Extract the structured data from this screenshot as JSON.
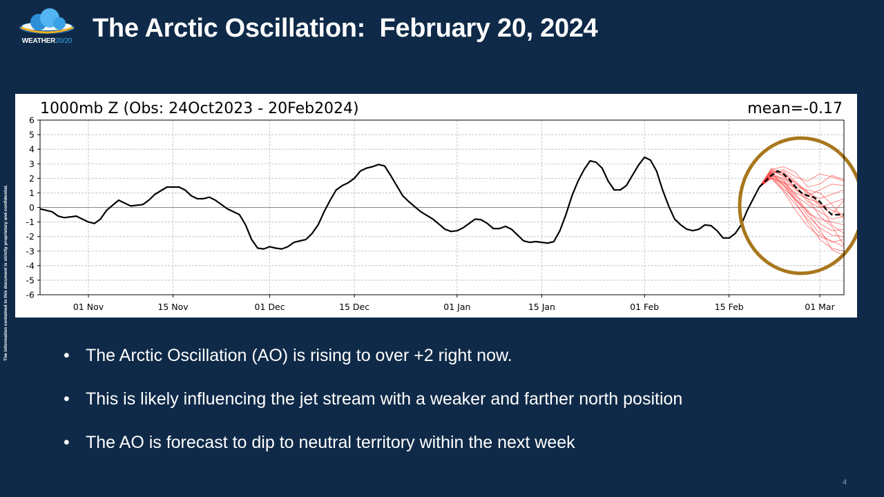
{
  "logo": {
    "name_main": "WEATHER",
    "name_accent": "20/20",
    "icon": "cloud-logo-icon"
  },
  "title": "The Arctic Oscillation:  February 20, 2024",
  "side_note": "The information contained in this document is strictly proprietary and confidential.",
  "bullets": [
    "The Arctic Oscillation (AO) is rising to over +2 right now.",
    "This is likely influencing the jet stream with a weaker and farther north position",
    "The AO is forecast to dip to neutral territory within the next week"
  ],
  "page_number": "4",
  "colors": {
    "background": "#0f2a48",
    "observed": "#000000",
    "ensemble": "#ff3030",
    "highlight_ring": "#a8771d"
  },
  "chart_data": {
    "type": "line",
    "title": "1000mb Z (Obs: 24Oct2023 - 20Feb2024)",
    "annotation": "mean=-0.17",
    "x_type": "date",
    "xlim": [
      "2023-10-24",
      "2024-03-05"
    ],
    "ylim": [
      -6,
      6
    ],
    "yticks": [
      -6,
      -5,
      -4,
      -3,
      -2,
      -1,
      0,
      1,
      2,
      3,
      4,
      5,
      6
    ],
    "xticks": [
      {
        "date": "2023-11-01",
        "label": "01 Nov"
      },
      {
        "date": "2023-11-15",
        "label": "15 Nov"
      },
      {
        "date": "2023-12-01",
        "label": "01 Dec"
      },
      {
        "date": "2023-12-15",
        "label": "15 Dec"
      },
      {
        "date": "2024-01-01",
        "label": "01 Jan"
      },
      {
        "date": "2024-01-15",
        "label": "15 Jan"
      },
      {
        "date": "2024-02-01",
        "label": "01 Feb"
      },
      {
        "date": "2024-02-15",
        "label": "15 Feb"
      },
      {
        "date": "2024-03-01",
        "label": "01 Mar"
      }
    ],
    "grid": true,
    "reference_line": 0,
    "observed": {
      "x": [
        "2023-10-24",
        "2023-10-26",
        "2023-10-27",
        "2023-10-28",
        "2023-10-30",
        "2023-11-01",
        "2023-11-02",
        "2023-11-03",
        "2023-11-04",
        "2023-11-06",
        "2023-11-07",
        "2023-11-08",
        "2023-11-10",
        "2023-11-11",
        "2023-11-12",
        "2023-11-14",
        "2023-11-16",
        "2023-11-17",
        "2023-11-18",
        "2023-11-19",
        "2023-11-20",
        "2023-11-21",
        "2023-11-22",
        "2023-11-24",
        "2023-11-25",
        "2023-11-26",
        "2023-11-27",
        "2023-11-28",
        "2023-11-29",
        "2023-11-30",
        "2023-12-01",
        "2023-12-02",
        "2023-12-03",
        "2023-12-04",
        "2023-12-05",
        "2023-12-06",
        "2023-12-07",
        "2023-12-08",
        "2023-12-09",
        "2023-12-10",
        "2023-12-11",
        "2023-12-12",
        "2023-12-13",
        "2023-12-14",
        "2023-12-15",
        "2023-12-16",
        "2023-12-17",
        "2023-12-18",
        "2023-12-19",
        "2023-12-20",
        "2023-12-21",
        "2023-12-22",
        "2023-12-23",
        "2023-12-24",
        "2023-12-26",
        "2023-12-28",
        "2023-12-30",
        "2023-12-31",
        "2024-01-01",
        "2024-01-02",
        "2024-01-03",
        "2024-01-04",
        "2024-01-05",
        "2024-01-06",
        "2024-01-07",
        "2024-01-08",
        "2024-01-09",
        "2024-01-10",
        "2024-01-11",
        "2024-01-12",
        "2024-01-13",
        "2024-01-14",
        "2024-01-15",
        "2024-01-16",
        "2024-01-17",
        "2024-01-18",
        "2024-01-19",
        "2024-01-20",
        "2024-01-21",
        "2024-01-22",
        "2024-01-23",
        "2024-01-24",
        "2024-01-25",
        "2024-01-26",
        "2024-01-27",
        "2024-01-28",
        "2024-01-29",
        "2024-01-30",
        "2024-01-31",
        "2024-02-01",
        "2024-02-02",
        "2024-02-03",
        "2024-02-04",
        "2024-02-05",
        "2024-02-06",
        "2024-02-07",
        "2024-02-08",
        "2024-02-09",
        "2024-02-10",
        "2024-02-11",
        "2024-02-12",
        "2024-02-13",
        "2024-02-14",
        "2024-02-15",
        "2024-02-16",
        "2024-02-17",
        "2024-02-18",
        "2024-02-19",
        "2024-02-20"
      ],
      "y": [
        -0.1,
        -0.3,
        -0.6,
        -0.7,
        -0.6,
        -1.0,
        -1.1,
        -0.8,
        -0.2,
        0.5,
        0.3,
        0.1,
        0.2,
        0.5,
        0.9,
        1.4,
        1.4,
        1.2,
        0.8,
        0.6,
        0.6,
        0.7,
        0.5,
        -0.1,
        -0.3,
        -0.5,
        -1.2,
        -2.2,
        -2.8,
        -2.85,
        -2.7,
        -2.8,
        -2.85,
        -2.7,
        -2.4,
        -2.3,
        -2.2,
        -1.8,
        -1.2,
        -0.3,
        0.5,
        1.2,
        1.5,
        1.7,
        2.0,
        2.5,
        2.7,
        2.8,
        2.95,
        2.85,
        2.2,
        1.5,
        0.8,
        0.4,
        -0.3,
        -0.8,
        -1.5,
        -1.65,
        -1.6,
        -1.4,
        -1.1,
        -0.8,
        -0.85,
        -1.1,
        -1.45,
        -1.45,
        -1.3,
        -1.5,
        -1.9,
        -2.3,
        -2.4,
        -2.35,
        -2.4,
        -2.45,
        -2.35,
        -1.6,
        -0.5,
        0.8,
        1.8,
        2.6,
        3.2,
        3.1,
        2.7,
        1.8,
        1.2,
        1.2,
        1.5,
        2.2,
        2.9,
        3.45,
        3.25,
        2.5,
        1.2,
        0.1,
        -0.8,
        -1.2,
        -1.5,
        -1.6,
        -1.5,
        -1.2,
        -1.25,
        -1.6,
        -2.1,
        -2.1,
        -1.8,
        -1.2,
        -0.2,
        0.6,
        1.4
      ]
    },
    "ensemble_mean": {
      "x": [
        "2024-02-20",
        "2024-02-21",
        "2024-02-22",
        "2024-02-23",
        "2024-02-24",
        "2024-02-25",
        "2024-02-26",
        "2024-02-27",
        "2024-02-28",
        "2024-02-29",
        "2024-03-01",
        "2024-03-02",
        "2024-03-03",
        "2024-03-04",
        "2024-03-05"
      ],
      "y": [
        1.4,
        1.8,
        2.2,
        2.5,
        2.3,
        1.9,
        1.4,
        1.0,
        0.8,
        0.7,
        0.4,
        -0.1,
        -0.5,
        -0.5,
        -0.5
      ]
    },
    "ensemble_members": [
      {
        "x": [
          "2024-02-20",
          "2024-02-22",
          "2024-02-24",
          "2024-02-26",
          "2024-02-28",
          "2024-03-01",
          "2024-03-03",
          "2024-03-05"
        ],
        "y": [
          1.4,
          2.4,
          2.6,
          2.1,
          1.8,
          2.3,
          2.1,
          1.8
        ]
      },
      {
        "x": [
          "2024-02-20",
          "2024-02-22",
          "2024-02-24",
          "2024-02-26",
          "2024-02-28",
          "2024-03-01",
          "2024-03-03",
          "2024-03-05"
        ],
        "y": [
          1.4,
          2.6,
          2.8,
          2.4,
          1.4,
          1.6,
          2.2,
          1.9
        ]
      },
      {
        "x": [
          "2024-02-20",
          "2024-02-22",
          "2024-02-24",
          "2024-02-26",
          "2024-02-28",
          "2024-03-01",
          "2024-03-03",
          "2024-03-05"
        ],
        "y": [
          1.4,
          2.2,
          2.0,
          1.2,
          0.8,
          1.2,
          1.6,
          1.5
        ]
      },
      {
        "x": [
          "2024-02-20",
          "2024-02-22",
          "2024-02-24",
          "2024-02-26",
          "2024-02-28",
          "2024-03-01",
          "2024-03-03",
          "2024-03-05"
        ],
        "y": [
          1.4,
          2.3,
          2.5,
          1.8,
          1.0,
          0.6,
          0.9,
          1.2
        ]
      },
      {
        "x": [
          "2024-02-20",
          "2024-02-22",
          "2024-02-24",
          "2024-02-26",
          "2024-02-28",
          "2024-03-01",
          "2024-03-03",
          "2024-03-05"
        ],
        "y": [
          1.4,
          2.5,
          2.2,
          1.3,
          0.4,
          0.0,
          0.3,
          0.6
        ]
      },
      {
        "x": [
          "2024-02-20",
          "2024-02-22",
          "2024-02-24",
          "2024-02-26",
          "2024-02-28",
          "2024-03-01",
          "2024-03-03",
          "2024-03-05"
        ],
        "y": [
          1.4,
          2.0,
          1.7,
          1.0,
          0.6,
          0.3,
          -0.2,
          -0.5
        ]
      },
      {
        "x": [
          "2024-02-20",
          "2024-02-22",
          "2024-02-24",
          "2024-02-26",
          "2024-02-28",
          "2024-03-01",
          "2024-03-03",
          "2024-03-05"
        ],
        "y": [
          1.4,
          2.4,
          1.9,
          0.8,
          0.2,
          -0.3,
          -0.8,
          -0.6
        ]
      },
      {
        "x": [
          "2024-02-20",
          "2024-02-22",
          "2024-02-24",
          "2024-02-26",
          "2024-02-28",
          "2024-03-01",
          "2024-03-03",
          "2024-03-05"
        ],
        "y": [
          1.4,
          2.1,
          1.5,
          0.9,
          -0.4,
          -0.8,
          -1.0,
          -1.2
        ]
      },
      {
        "x": [
          "2024-02-20",
          "2024-02-22",
          "2024-02-24",
          "2024-02-26",
          "2024-02-28",
          "2024-03-01",
          "2024-03-03",
          "2024-03-05"
        ],
        "y": [
          1.4,
          2.2,
          1.6,
          0.5,
          -0.2,
          -1.1,
          -1.6,
          -1.5
        ]
      },
      {
        "x": [
          "2024-02-20",
          "2024-02-22",
          "2024-02-24",
          "2024-02-26",
          "2024-02-28",
          "2024-03-01",
          "2024-03-03",
          "2024-03-05"
        ],
        "y": [
          1.4,
          2.3,
          1.8,
          0.6,
          -0.6,
          -1.4,
          -1.9,
          -2.0
        ]
      },
      {
        "x": [
          "2024-02-20",
          "2024-02-22",
          "2024-02-24",
          "2024-02-26",
          "2024-02-28",
          "2024-03-01",
          "2024-03-03",
          "2024-03-05"
        ],
        "y": [
          1.4,
          2.0,
          1.2,
          0.2,
          -0.8,
          -1.8,
          -2.4,
          -2.2
        ]
      },
      {
        "x": [
          "2024-02-20",
          "2024-02-22",
          "2024-02-24",
          "2024-02-26",
          "2024-02-28",
          "2024-03-01",
          "2024-03-03",
          "2024-03-05"
        ],
        "y": [
          1.4,
          2.4,
          1.5,
          0.4,
          -1.0,
          -2.2,
          -2.8,
          -3.0
        ]
      },
      {
        "x": [
          "2024-02-20",
          "2024-02-22",
          "2024-02-24",
          "2024-02-26",
          "2024-02-28",
          "2024-03-01",
          "2024-03-03",
          "2024-03-05"
        ],
        "y": [
          1.4,
          2.1,
          1.3,
          0.6,
          -0.3,
          -1.5,
          -2.9,
          -3.3
        ]
      },
      {
        "x": [
          "2024-02-20",
          "2024-02-22",
          "2024-02-24",
          "2024-02-26",
          "2024-02-28",
          "2024-03-01",
          "2024-03-03",
          "2024-03-05"
        ],
        "y": [
          1.4,
          2.6,
          2.1,
          1.4,
          0.6,
          -0.6,
          -1.3,
          -2.6
        ]
      },
      {
        "x": [
          "2024-02-20",
          "2024-02-22",
          "2024-02-24",
          "2024-02-26",
          "2024-02-28",
          "2024-03-01",
          "2024-03-03",
          "2024-03-05"
        ],
        "y": [
          1.4,
          2.5,
          2.4,
          1.6,
          1.1,
          0.2,
          -0.5,
          0.5
        ]
      },
      {
        "x": [
          "2024-02-20",
          "2024-02-22",
          "2024-02-24",
          "2024-02-26",
          "2024-02-28",
          "2024-03-01",
          "2024-03-03",
          "2024-03-05"
        ],
        "y": [
          1.4,
          2.2,
          1.7,
          1.4,
          1.2,
          1.0,
          0.2,
          -0.8
        ]
      },
      {
        "x": [
          "2024-02-20",
          "2024-02-22",
          "2024-02-24",
          "2024-02-26",
          "2024-02-28",
          "2024-03-01",
          "2024-03-03",
          "2024-03-05"
        ],
        "y": [
          1.4,
          2.7,
          2.3,
          1.7,
          0.9,
          0.1,
          -1.2,
          -1.8
        ]
      },
      {
        "x": [
          "2024-02-20",
          "2024-02-22",
          "2024-02-24",
          "2024-02-26",
          "2024-02-28",
          "2024-03-01",
          "2024-03-03",
          "2024-03-05"
        ],
        "y": [
          1.4,
          2.0,
          1.1,
          -0.2,
          -1.3,
          -2.0,
          -2.3,
          -2.7
        ]
      }
    ]
  }
}
